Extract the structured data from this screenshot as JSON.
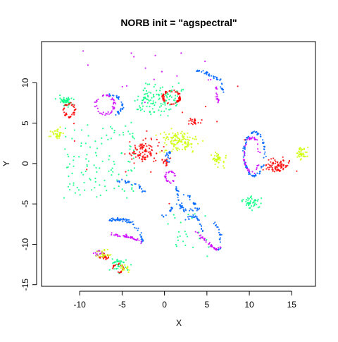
{
  "chart_data": {
    "type": "scatter",
    "title": "NORB init = \"agspectral\"",
    "xlabel": "X",
    "ylabel": "Y",
    "xlim": [
      -14.5,
      17.8
    ],
    "ylim": [
      -15.2,
      15.1
    ],
    "xticks": [
      -10,
      -5,
      0,
      5,
      10,
      15
    ],
    "yticks": [
      -15,
      -10,
      -5,
      0,
      5,
      10
    ],
    "grid": false,
    "legend": "none",
    "palette": {
      "red": "#ff0000",
      "green": "#00ff80",
      "blue": "#0066ff",
      "magenta": "#cc00ff",
      "yellow": "#ccff00"
    },
    "clusters": [
      {
        "color": "green",
        "shape": "blob",
        "cx": -11.7,
        "cy": 7.7,
        "rx": 0.8,
        "ry": 0.6,
        "n": 45
      },
      {
        "color": "red",
        "shape": "ring",
        "cx": -11.2,
        "cy": 6.6,
        "rx": 0.6,
        "ry": 0.8,
        "n": 40
      },
      {
        "color": "yellow",
        "shape": "blob",
        "cx": -12.6,
        "cy": 3.7,
        "rx": 0.7,
        "ry": 0.6,
        "n": 30
      },
      {
        "color": "magenta",
        "shape": "ring",
        "cx": -7.0,
        "cy": 7.3,
        "rx": 1.1,
        "ry": 1.2,
        "n": 45
      },
      {
        "color": "blue",
        "shape": "arc",
        "cx": -6.5,
        "cy": 7.2,
        "rx": 1.5,
        "ry": 1.3,
        "a0": -60,
        "a1": 90,
        "n": 35
      },
      {
        "color": "green",
        "shape": "blob",
        "cx": -1.7,
        "cy": 7.8,
        "rx": 1.8,
        "ry": 1.7,
        "n": 80
      },
      {
        "color": "red",
        "shape": "ring",
        "cx": 0.8,
        "cy": 8.2,
        "rx": 1.0,
        "ry": 0.8,
        "n": 70
      },
      {
        "color": "green",
        "shape": "blob",
        "cx": 1.0,
        "cy": 8.2,
        "rx": 1.8,
        "ry": 1.5,
        "n": 35
      },
      {
        "color": "blue",
        "shape": "curve",
        "pts": [
          [
            3.6,
            11.6
          ],
          [
            5.1,
            11.1
          ],
          [
            6.6,
            10.3
          ],
          [
            6.8,
            8.9
          ]
        ],
        "n": 45
      },
      {
        "color": "magenta",
        "shape": "curve",
        "pts": [
          [
            5.0,
            10.6
          ],
          [
            6.0,
            9.8
          ],
          [
            6.2,
            8.2
          ],
          [
            6.5,
            7.6
          ]
        ],
        "n": 18
      },
      {
        "color": "red",
        "shape": "blob",
        "cx": 3.7,
        "cy": 5.2,
        "rx": 0.9,
        "ry": 0.3,
        "n": 22
      },
      {
        "color": "red",
        "shape": "blob",
        "cx": -2.5,
        "cy": 1.6,
        "rx": 1.6,
        "ry": 1.2,
        "n": 90
      },
      {
        "color": "red",
        "shape": "blob",
        "cx": 0.2,
        "cy": 0.2,
        "rx": 0.5,
        "ry": 0.4,
        "n": 15
      },
      {
        "color": "yellow",
        "shape": "blob",
        "cx": 1.7,
        "cy": 2.8,
        "rx": 2.0,
        "ry": 1.2,
        "n": 120
      },
      {
        "color": "yellow",
        "shape": "blob",
        "cx": 6.3,
        "cy": 0.6,
        "rx": 0.6,
        "ry": 0.8,
        "n": 40
      },
      {
        "color": "green",
        "shape": "scatter",
        "cx": -7.7,
        "cy": 0.4,
        "rx": 4.2,
        "ry": 4.8,
        "n": 120
      },
      {
        "color": "blue",
        "shape": "curve",
        "pts": [
          [
            -5.6,
            -2.1
          ],
          [
            -4.3,
            -2.3
          ],
          [
            -3.1,
            -2.7
          ],
          [
            -2.4,
            -3.4
          ]
        ],
        "n": 28
      },
      {
        "color": "blue",
        "shape": "curve",
        "pts": [
          [
            -6.6,
            -7.0
          ],
          [
            -5.5,
            -6.9
          ],
          [
            -4.5,
            -7.0
          ],
          [
            -3.6,
            -7.5
          ],
          [
            -2.8,
            -8.7
          ],
          [
            -2.6,
            -9.8
          ]
        ],
        "n": 65
      },
      {
        "color": "magenta",
        "shape": "curve",
        "pts": [
          [
            -6.8,
            -8.6
          ],
          [
            -5.4,
            -8.9
          ],
          [
            -4.2,
            -9.1
          ],
          [
            -3.4,
            -9.4
          ],
          [
            -2.6,
            -9.9
          ]
        ],
        "n": 45
      },
      {
        "color": "blue",
        "shape": "curve",
        "pts": [
          [
            0.6,
            -0.1
          ],
          [
            0.2,
            1.2
          ],
          [
            0.7,
            1.3
          ]
        ],
        "n": 18
      },
      {
        "color": "magenta",
        "shape": "ring",
        "cx": 0.7,
        "cy": -1.7,
        "rx": 0.5,
        "ry": 0.7,
        "n": 28
      },
      {
        "color": "blue",
        "shape": "curve",
        "pts": [
          [
            1.4,
            -3.0
          ],
          [
            1.7,
            -5.0
          ],
          [
            2.4,
            -5.9
          ],
          [
            3.3,
            -5.8
          ],
          [
            4.1,
            -5.6
          ]
        ],
        "n": 40
      },
      {
        "color": "blue",
        "shape": "curve",
        "pts": [
          [
            2.3,
            -3.6
          ],
          [
            3.0,
            -4.3
          ],
          [
            3.7,
            -5.0
          ]
        ],
        "n": 15
      },
      {
        "color": "blue",
        "shape": "curve",
        "pts": [
          [
            -0.2,
            -6.6
          ],
          [
            0.6,
            -5.8
          ],
          [
            1.2,
            -5.1
          ],
          [
            2.0,
            -5.0
          ]
        ],
        "n": 18
      },
      {
        "color": "blue",
        "shape": "curve",
        "pts": [
          [
            2.4,
            -7.0
          ],
          [
            3.6,
            -6.4
          ],
          [
            4.2,
            -7.4
          ],
          [
            4.6,
            -8.5
          ]
        ],
        "n": 28
      },
      {
        "color": "magenta",
        "shape": "curve",
        "pts": [
          [
            3.6,
            -8.5
          ],
          [
            4.6,
            -9.3
          ],
          [
            5.4,
            -10.1
          ],
          [
            6.0,
            -10.6
          ],
          [
            6.6,
            -10.4
          ]
        ],
        "n": 40
      },
      {
        "color": "blue",
        "shape": "curve",
        "pts": [
          [
            6.0,
            -7.4
          ],
          [
            6.5,
            -8.5
          ],
          [
            6.6,
            -9.7
          ],
          [
            6.3,
            -10.8
          ]
        ],
        "n": 22
      },
      {
        "color": "blue",
        "shape": "ring",
        "cx": 10.6,
        "cy": 1.2,
        "rx": 1.2,
        "ry": 2.7,
        "n": 90
      },
      {
        "color": "magenta",
        "shape": "ring",
        "cx": 10.3,
        "cy": 1.0,
        "rx": 0.9,
        "ry": 2.2,
        "n": 45
      },
      {
        "color": "red",
        "shape": "blob",
        "cx": 13.4,
        "cy": -0.3,
        "rx": 1.4,
        "ry": 0.8,
        "n": 80
      },
      {
        "color": "yellow",
        "shape": "blob",
        "cx": 16.1,
        "cy": 1.4,
        "rx": 0.7,
        "ry": 0.7,
        "n": 40
      },
      {
        "color": "green",
        "shape": "blob",
        "cx": 10.3,
        "cy": -4.8,
        "rx": 0.9,
        "ry": 0.8,
        "n": 45
      },
      {
        "color": "green",
        "shape": "scatter",
        "cx": 2.5,
        "cy": -9.0,
        "rx": 3.0,
        "ry": 3.0,
        "n": 25
      },
      {
        "color": "magenta",
        "shape": "blob",
        "cx": -7.7,
        "cy": -11.1,
        "rx": 0.5,
        "ry": 0.5,
        "n": 18
      },
      {
        "color": "red",
        "shape": "blob",
        "cx": -7.1,
        "cy": -11.5,
        "rx": 0.4,
        "ry": 0.3,
        "n": 18
      },
      {
        "color": "yellow",
        "shape": "blob",
        "cx": -7.2,
        "cy": -11.2,
        "rx": 0.8,
        "ry": 0.5,
        "n": 25
      },
      {
        "color": "green",
        "shape": "blob",
        "cx": -5.4,
        "cy": -12.6,
        "rx": 1.0,
        "ry": 0.8,
        "n": 40
      },
      {
        "color": "red",
        "shape": "ring",
        "cx": -5.5,
        "cy": -13.0,
        "rx": 0.6,
        "ry": 0.5,
        "n": 22
      },
      {
        "color": "yellow",
        "shape": "blob",
        "cx": -4.7,
        "cy": -13.0,
        "rx": 0.5,
        "ry": 0.5,
        "n": 15
      },
      {
        "color": "magenta",
        "shape": "scatter",
        "cx": 0.0,
        "cy": 10.0,
        "rx": 10.0,
        "ry": 4.0,
        "n": 15
      },
      {
        "color": "red",
        "shape": "scatter",
        "cx": 1.0,
        "cy": 0.0,
        "rx": 12.0,
        "ry": 10.0,
        "n": 15
      }
    ]
  }
}
